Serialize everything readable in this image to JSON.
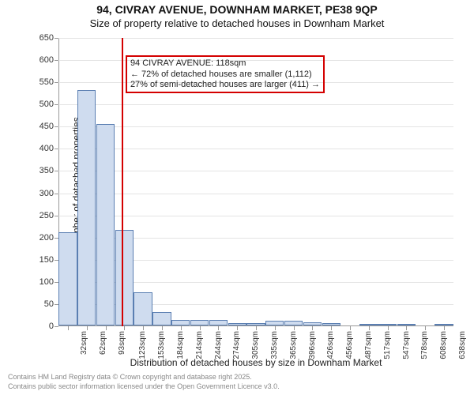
{
  "title": "94, CIVRAY AVENUE, DOWNHAM MARKET, PE38 9QP",
  "subtitle": "Size of property relative to detached houses in Downham Market",
  "ylabel": "Number of detached properties",
  "xlabel": "Distribution of detached houses by size in Downham Market",
  "footer1": "Contains HM Land Registry data © Crown copyright and database right 2025.",
  "footer2": "Contains public sector information licensed under the Open Government Licence v3.0.",
  "chart": {
    "type": "histogram",
    "ylim": [
      0,
      650
    ],
    "ytick_step": 50,
    "background_color": "#ffffff",
    "grid_color": "#e4e4e4",
    "axis_color": "#999999",
    "bar_fill": "#cfdcef",
    "bar_stroke": "#5b7fb2",
    "bar_stroke_width": 1,
    "refline_color": "#d40000",
    "refline_width": 2,
    "refline_x_index": 2.85,
    "annotation_border_color": "#d40000",
    "x_categories": [
      "32sqm",
      "62sqm",
      "93sqm",
      "123sqm",
      "153sqm",
      "184sqm",
      "214sqm",
      "244sqm",
      "274sqm",
      "305sqm",
      "335sqm",
      "365sqm",
      "396sqm",
      "426sqm",
      "456sqm",
      "487sqm",
      "517sqm",
      "547sqm",
      "578sqm",
      "608sqm",
      "638sqm"
    ],
    "values": [
      210,
      530,
      455,
      215,
      75,
      30,
      13,
      12,
      12,
      5,
      5,
      10,
      10,
      7,
      5,
      0,
      3,
      3,
      3,
      0,
      3
    ],
    "bar_width": 0.98,
    "annotation": {
      "line1": "94 CIVRAY AVENUE: 118sqm",
      "line2": "← 72% of detached houses are smaller (1,112)",
      "line3": "27% of semi-detached houses are larger (411) →",
      "top_index_y": 610,
      "left_index_x": 2.9
    }
  }
}
